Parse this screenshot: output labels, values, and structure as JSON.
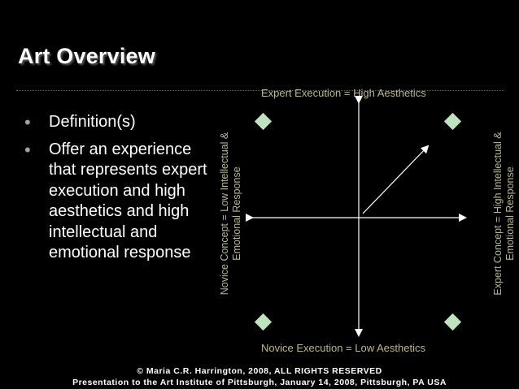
{
  "slide": {
    "title": "Art Overview",
    "bullets": [
      "Definition(s)",
      "Offer an experience that represents expert execution and high aesthetics and high intellectual and emotional response"
    ]
  },
  "diagram": {
    "top_label": "Expert Execution = High Aesthetics",
    "bottom_label": "Novice Execution = Low Aesthetics",
    "left_label": [
      "Novice Concept  = Low Intellectual &",
      "Emotional Response"
    ],
    "right_label": [
      "Expert Concept  = High Intellectual &",
      "Emotional Response"
    ],
    "colors": {
      "marker": "#bfe3bf",
      "axis": "#ffffff",
      "label": "#b9b98a"
    }
  },
  "footer": {
    "copyright": "© Maria C.R. Harrington, 2008, ALL RIGHTS RESERVED",
    "presentation": "Presentation to the Art Institute of Pittsburgh, January 14, 2008, Pittsburgh, PA USA"
  }
}
